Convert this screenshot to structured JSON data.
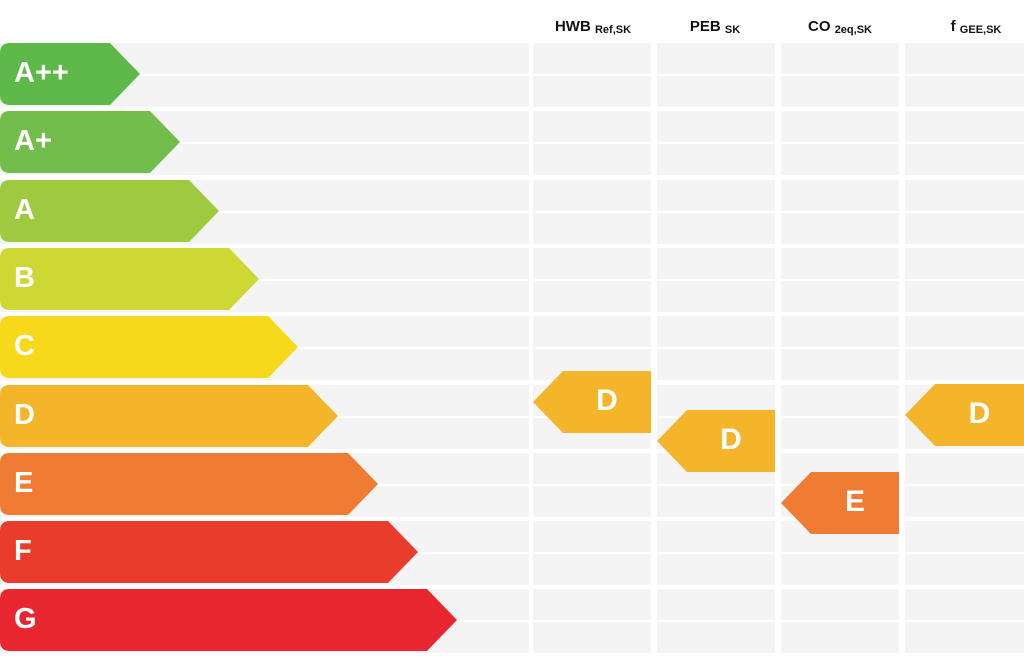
{
  "chart_data": {
    "type": "table",
    "title": "",
    "columns": [
      {
        "key": "hwb",
        "label": "HWB",
        "sub": "Ref,SK"
      },
      {
        "key": "peb",
        "label": "PEB",
        "sub": "SK"
      },
      {
        "key": "co2",
        "label": "CO",
        "sub": "2eq,SK"
      },
      {
        "key": "fgee",
        "label": "f",
        "sub": "GEE,SK"
      }
    ],
    "classes": [
      {
        "label": "A++",
        "color": "#5eb94a"
      },
      {
        "label": "A+",
        "color": "#72bd4c"
      },
      {
        "label": "A",
        "color": "#9fca3f"
      },
      {
        "label": "B",
        "color": "#cdd834"
      },
      {
        "label": "C",
        "color": "#f6d91b"
      },
      {
        "label": "D",
        "color": "#f4b52b"
      },
      {
        "label": "E",
        "color": "#f07b33"
      },
      {
        "label": "F",
        "color": "#ea3c2c"
      },
      {
        "label": "G",
        "color": "#e8262f"
      }
    ],
    "ratings": [
      {
        "column": "hwb",
        "class": "D",
        "color": "#f4b52b"
      },
      {
        "column": "peb",
        "class": "D",
        "color": "#f4b52b"
      },
      {
        "column": "co2",
        "class": "E",
        "color": "#f07b33"
      },
      {
        "column": "fgee",
        "class": "D",
        "color": "#f4b52b"
      }
    ]
  }
}
